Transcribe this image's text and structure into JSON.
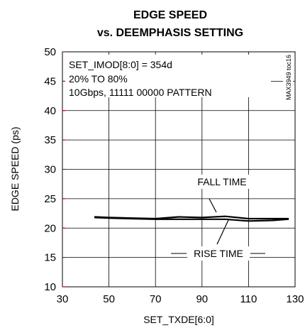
{
  "chart_data": {
    "type": "line",
    "title_line1": "EDGE SPEED",
    "title_line2": "vs. DEEMPHASIS SETTING",
    "xlabel": "SET_TXDE[6:0]",
    "ylabel": "EDGE SPEED (ps)",
    "xlim": [
      30,
      130
    ],
    "ylim": [
      10,
      50
    ],
    "xticks": [
      "30",
      "50",
      "70",
      "90",
      "110",
      "130"
    ],
    "yticks": [
      "10",
      "15",
      "20",
      "25",
      "30",
      "35",
      "40",
      "45",
      "50"
    ],
    "grid": true,
    "annotations": [
      "SET_IMOD[8:0] = 354d",
      "20% TO 80%",
      "10Gbps, 11111 00000 PATTERN"
    ],
    "figure_id": "MAX3949 toc16",
    "series": [
      {
        "name": "FALL TIME",
        "x": [
          44,
          50,
          60,
          70,
          80,
          90,
          100,
          110,
          120,
          127
        ],
        "y": [
          21.9,
          21.8,
          21.7,
          21.6,
          21.9,
          21.8,
          22.0,
          21.6,
          21.6,
          21.6
        ]
      },
      {
        "name": "RISE TIME",
        "x": [
          44,
          50,
          60,
          70,
          80,
          90,
          100,
          110,
          120,
          127
        ],
        "y": [
          21.8,
          21.7,
          21.6,
          21.5,
          21.5,
          21.5,
          21.5,
          21.2,
          21.3,
          21.5
        ]
      }
    ]
  }
}
